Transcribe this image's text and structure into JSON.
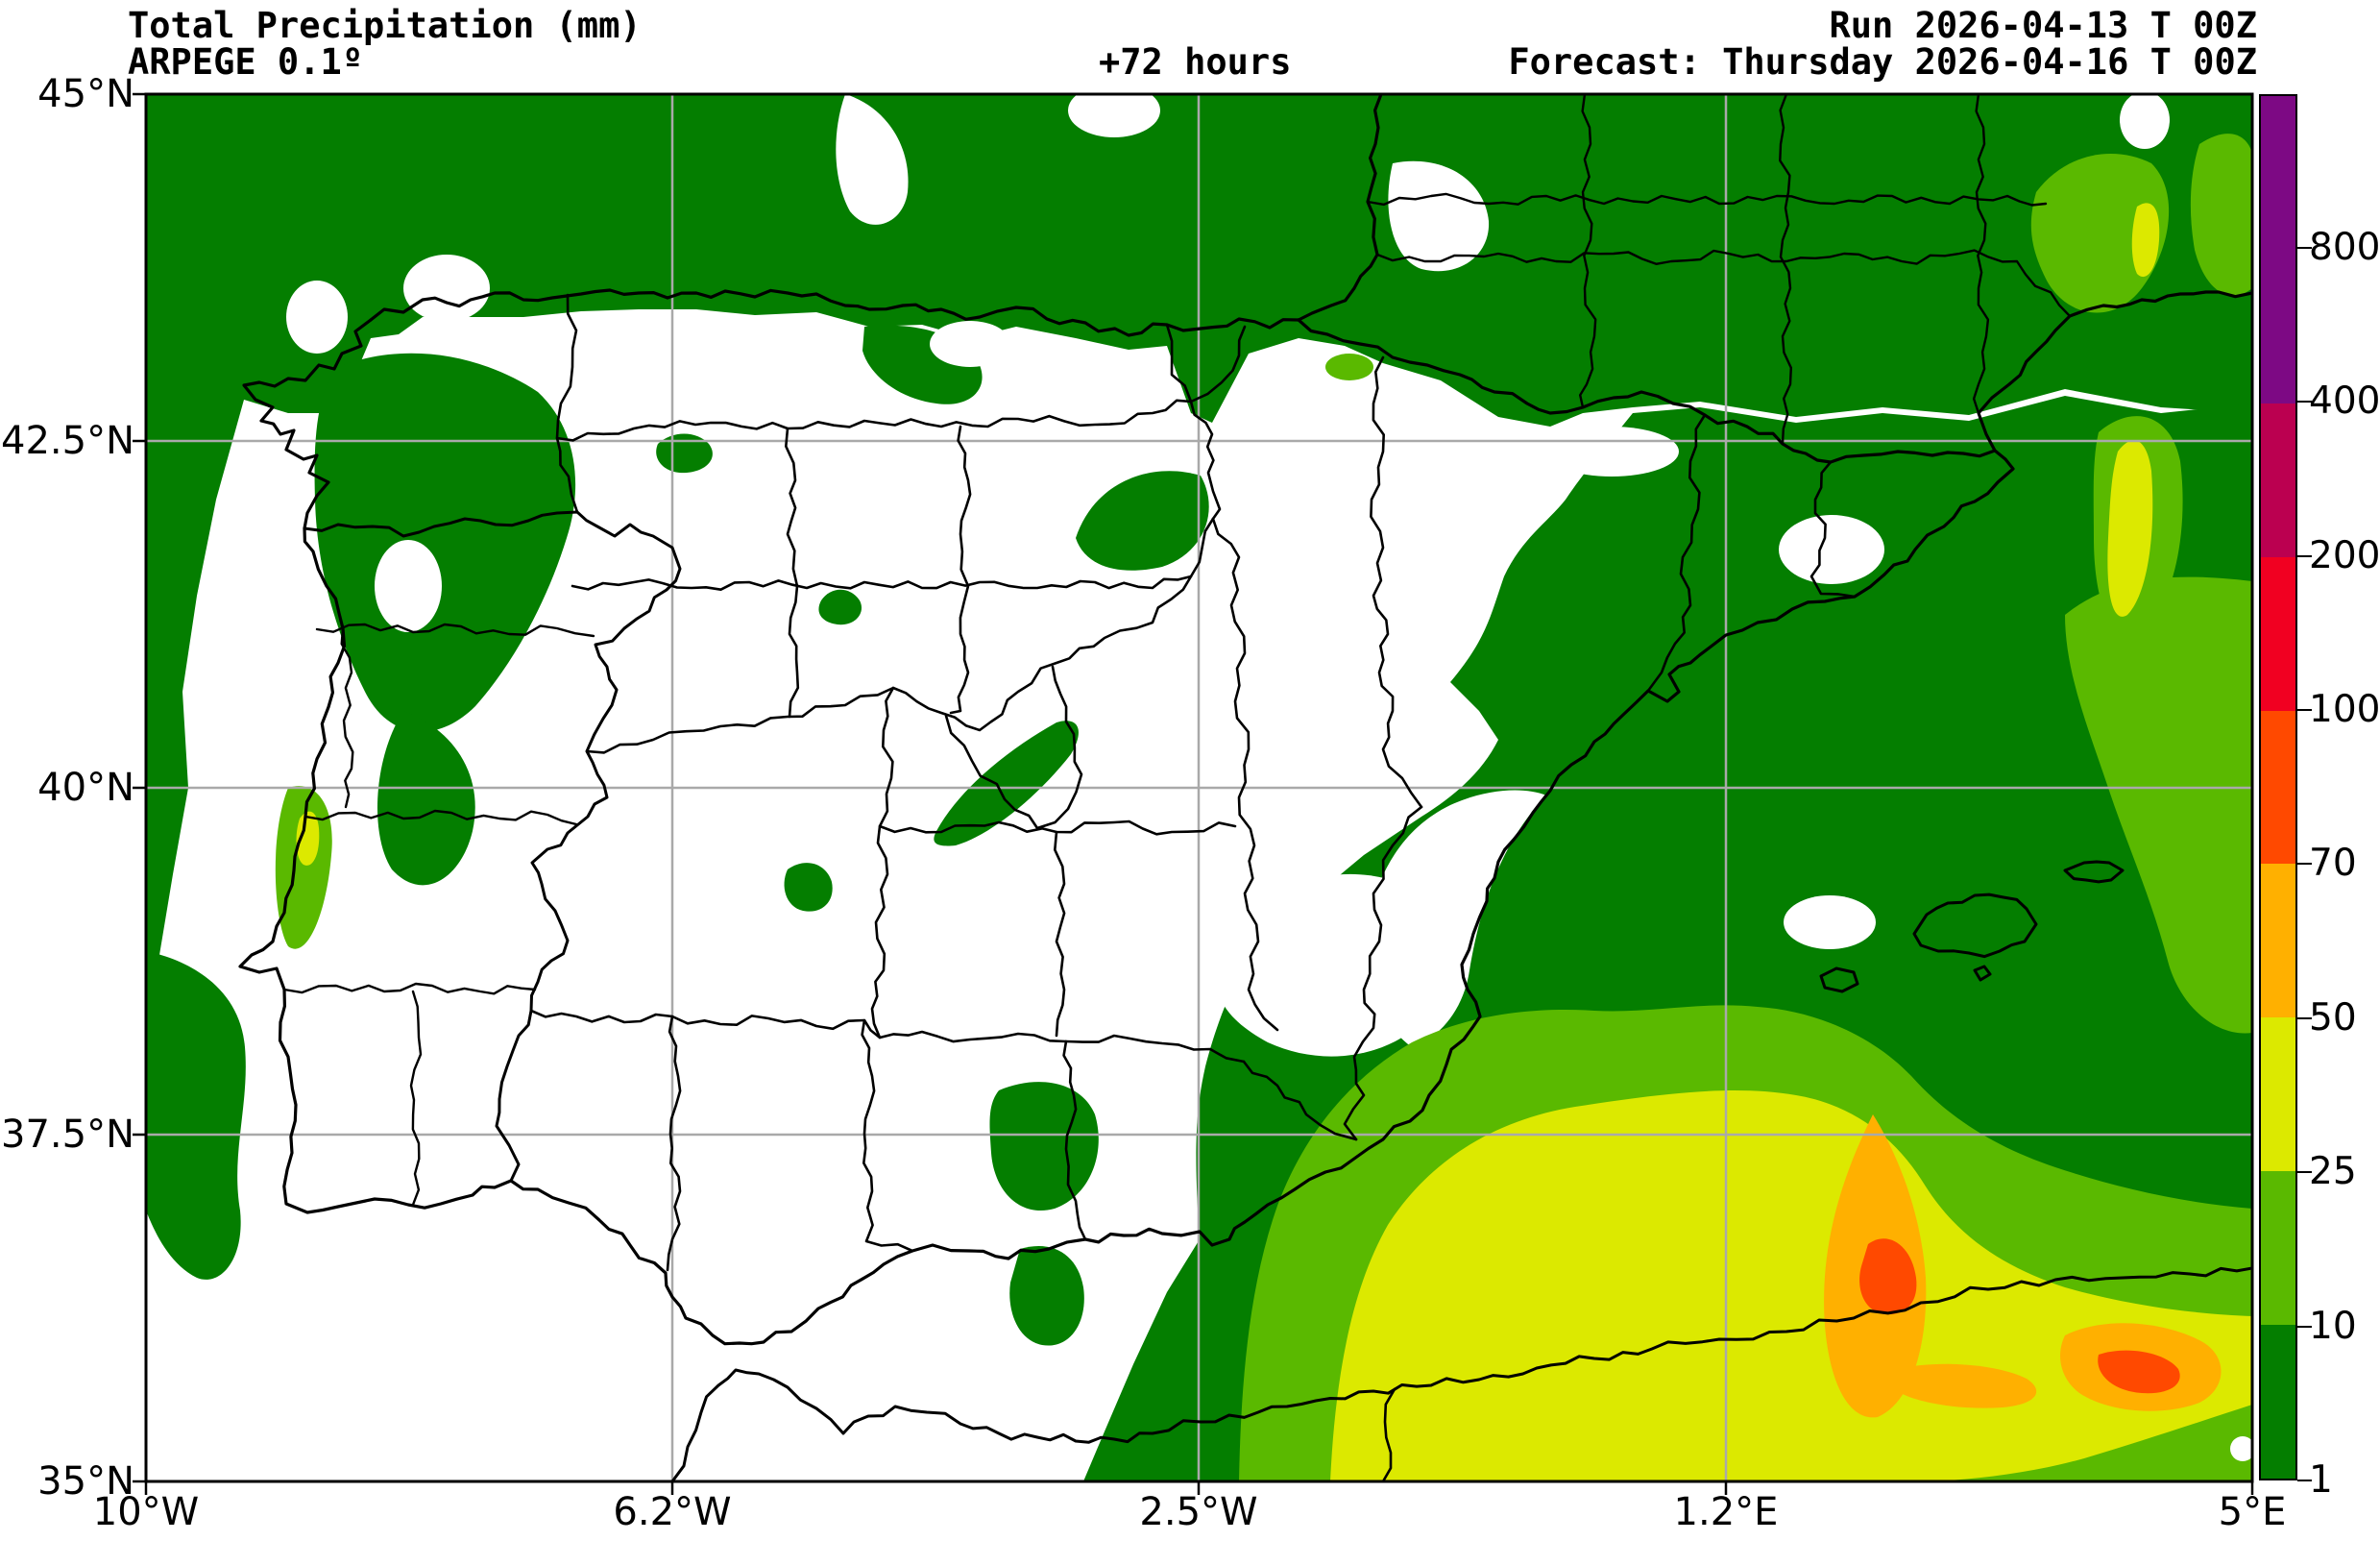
{
  "header": {
    "title_line1": "Total Precipitation (mm)",
    "title_line2": "ARPEGE 0.1º",
    "lead_time": "+72 hours",
    "run_label": "Run 2026-04-13 T 00Z",
    "forecast_label": "Forecast: Thursday 2026-04-16 T 00Z"
  },
  "axes": {
    "lat_ticks": [
      {
        "label": "45°N"
      },
      {
        "label": "42.5°N"
      },
      {
        "label": "40°N"
      },
      {
        "label": "37.5°N"
      },
      {
        "label": "35°N"
      }
    ],
    "lon_ticks": [
      {
        "label": "10°W"
      },
      {
        "label": "6.2°W"
      },
      {
        "label": "2.5°W"
      },
      {
        "label": "1.2°E"
      },
      {
        "label": "5°E"
      }
    ]
  },
  "colorbar": {
    "tick_labels": [
      "800",
      "400",
      "200",
      "100",
      "70",
      "50",
      "25",
      "10",
      "1"
    ],
    "levels_mm": [
      1,
      10,
      25,
      50,
      70,
      100,
      200,
      400,
      800
    ],
    "segments": [
      {
        "range": "> 800",
        "color": "#7D0984"
      },
      {
        "range": "400-800",
        "color": "#7D0984"
      },
      {
        "range": "200-400",
        "color": "#BB0050"
      },
      {
        "range": "100-200",
        "color": "#F10021"
      },
      {
        "range": "70-100",
        "color": "#FF4900"
      },
      {
        "range": "50-70",
        "color": "#FFB000"
      },
      {
        "range": "25-50",
        "color": "#DCE900"
      },
      {
        "range": "10-25",
        "color": "#5AB900"
      },
      {
        "range": "1-10",
        "color": "#047E00"
      }
    ]
  },
  "map_colors": {
    "no_precip": "#FFFFFF",
    "p1_10": "#047E00",
    "p10_25": "#5AB900",
    "p25_50": "#DCE900",
    "p50_70": "#FFB000",
    "p70_100": "#FF4900",
    "border": "#000000",
    "gridline": "#A9A9A9"
  }
}
